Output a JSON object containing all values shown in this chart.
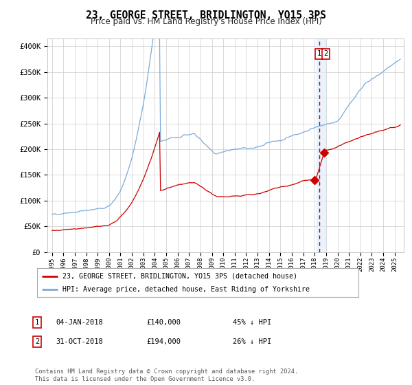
{
  "title": "23, GEORGE STREET, BRIDLINGTON, YO15 3PS",
  "subtitle": "Price paid vs. HM Land Registry's House Price Index (HPI)",
  "ylabel_ticks": [
    "£0",
    "£50K",
    "£100K",
    "£150K",
    "£200K",
    "£250K",
    "£300K",
    "£350K",
    "£400K"
  ],
  "ytick_values": [
    0,
    50000,
    100000,
    150000,
    200000,
    250000,
    300000,
    350000,
    400000
  ],
  "ylim": [
    0,
    415000
  ],
  "xlim_start": 1994.6,
  "xlim_end": 2025.8,
  "red_line_color": "#cc0000",
  "blue_line_color": "#7aabdb",
  "dashed_line_color": "#cc0000",
  "marker_color": "#cc0000",
  "transaction1_date": 2018.01,
  "transaction1_value": 140000,
  "transaction2_date": 2018.83,
  "transaction2_value": 194000,
  "transaction_x": 2018.42,
  "shade_color": "#ddeeff",
  "legend_label_red": "23, GEORGE STREET, BRIDLINGTON, YO15 3PS (detached house)",
  "legend_label_blue": "HPI: Average price, detached house, East Riding of Yorkshire",
  "table_row1": [
    "1",
    "04-JAN-2018",
    "£140,000",
    "45% ↓ HPI"
  ],
  "table_row2": [
    "2",
    "31-OCT-2018",
    "£194,000",
    "26% ↓ HPI"
  ],
  "footnote": "Contains HM Land Registry data © Crown copyright and database right 2024.\nThis data is licensed under the Open Government Licence v3.0.",
  "bg_color": "#ffffff",
  "grid_color": "#cccccc",
  "box_label_color": "#cc0000"
}
